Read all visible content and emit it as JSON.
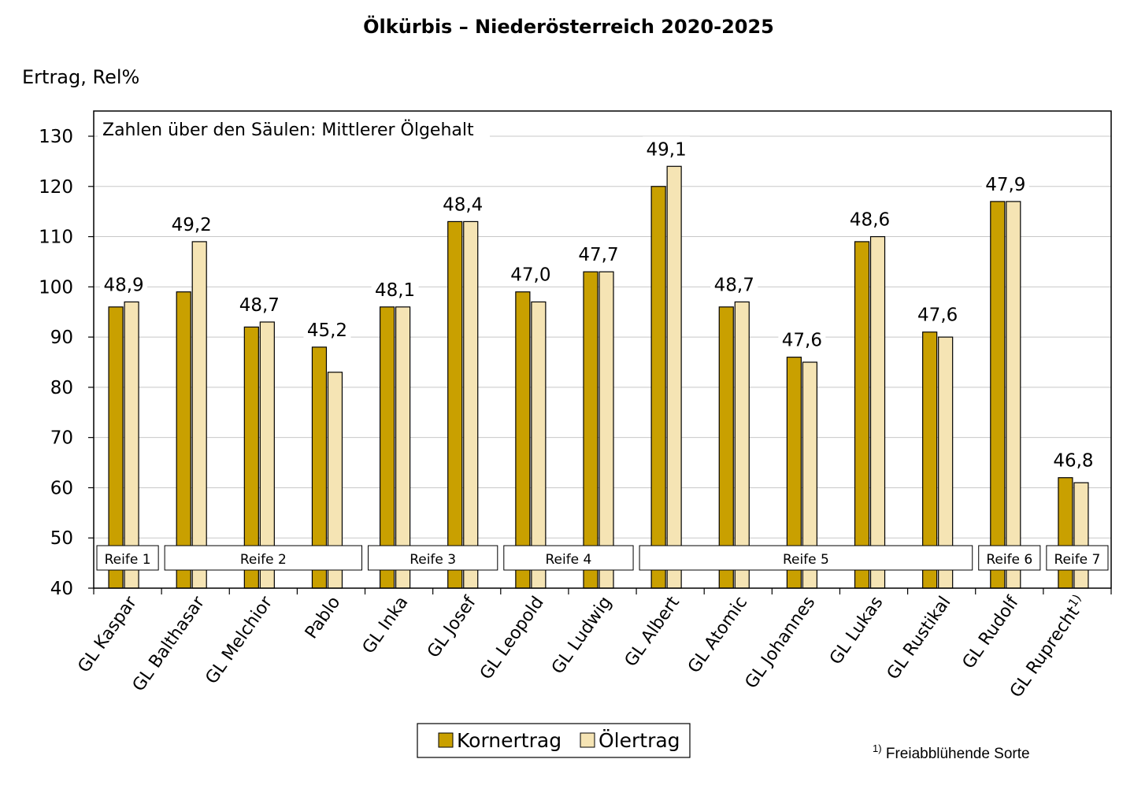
{
  "chart_data": {
    "type": "bar",
    "title": "Ölkürbis – Niederösterreich 2020-2025",
    "ylabel": "Ertrag, Rel%",
    "ylim": [
      40,
      130
    ],
    "yticks": [
      40,
      50,
      60,
      70,
      80,
      90,
      100,
      110,
      120,
      130
    ],
    "grid": true,
    "legend_position": "bottom",
    "annotation": "Zahlen über den Säulen: Mittlerer Ölgehalt",
    "categories": [
      "GL Kaspar",
      "GL Balthasar",
      "GL Melchior",
      "Pablo",
      "GL Inka",
      "GL Josef",
      "GL Leopold",
      "GL Ludwig",
      "GL Albert",
      "GL Atomic",
      "GL Johannes",
      "GL Lukas",
      "GL Rustikal",
      "GL Rudolf",
      "GL Ruprecht"
    ],
    "category_superscripts": [
      "",
      "",
      "",
      "",
      "",
      "",
      "",
      "",
      "",
      "",
      "",
      "",
      "",
      "",
      "1)"
    ],
    "series": [
      {
        "name": "Kornertrag",
        "color": "#c9a000",
        "values": [
          96,
          99,
          92,
          88,
          96,
          113,
          99,
          103,
          120,
          96,
          86,
          109,
          91,
          117,
          62
        ]
      },
      {
        "name": "Ölertrag",
        "color": "#f5e4b4",
        "values": [
          97,
          109,
          93,
          83,
          96,
          113,
          97,
          103,
          124,
          97,
          85,
          110,
          90,
          117,
          61
        ]
      }
    ],
    "oil_content_labels": [
      "48,9",
      "49,2",
      "48,7",
      "45,2",
      "48,1",
      "48,4",
      "47,0",
      "47,7",
      "49,1",
      "48,7",
      "47,6",
      "48,6",
      "47,6",
      "47,9",
      "46,8"
    ],
    "maturity_groups": [
      {
        "label": "Reife 1",
        "from": 0,
        "to": 0
      },
      {
        "label": "Reife 2",
        "from": 1,
        "to": 3
      },
      {
        "label": "Reife 3",
        "from": 4,
        "to": 5
      },
      {
        "label": "Reife 4",
        "from": 6,
        "to": 7
      },
      {
        "label": "Reife 5",
        "from": 8,
        "to": 12
      },
      {
        "label": "Reife 6",
        "from": 13,
        "to": 13
      },
      {
        "label": "Reife 7",
        "from": 14,
        "to": 14
      }
    ],
    "footnote_marker": "1)",
    "footnote_text": "Freiabblühende Sorte"
  }
}
